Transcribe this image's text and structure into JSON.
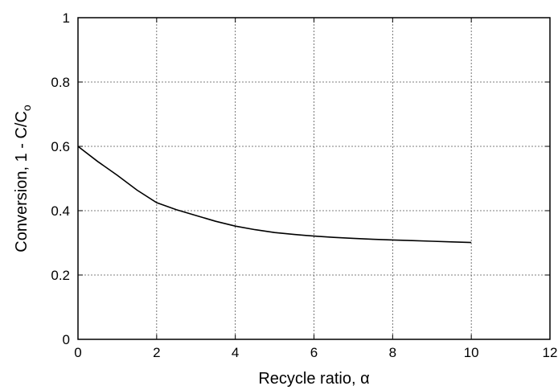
{
  "chart_data": {
    "type": "line",
    "xlabel": "Recycle ratio, α",
    "ylabel": {
      "main": "Conversion,  1 - C/C",
      "subscript": "o"
    },
    "xlim": [
      0,
      12
    ],
    "ylim": [
      0,
      1
    ],
    "xticks": [
      "0",
      "2",
      "4",
      "6",
      "8",
      "10",
      "12"
    ],
    "yticks": [
      "0",
      "0.2",
      "0.4",
      "0.6",
      "0.8",
      "1"
    ],
    "grid": true,
    "series": [
      {
        "x": [
          0,
          0.5,
          1,
          1.5,
          2,
          2.5,
          3,
          3.5,
          4,
          4.5,
          5,
          5.5,
          6,
          6.5,
          7,
          7.5,
          8,
          8.5,
          9,
          9.5,
          10
        ],
        "y": [
          0.6,
          0.553,
          0.51,
          0.464,
          0.425,
          0.403,
          0.385,
          0.367,
          0.352,
          0.341,
          0.332,
          0.326,
          0.321,
          0.317,
          0.314,
          0.311,
          0.309,
          0.307,
          0.305,
          0.303,
          0.301
        ]
      }
    ]
  }
}
